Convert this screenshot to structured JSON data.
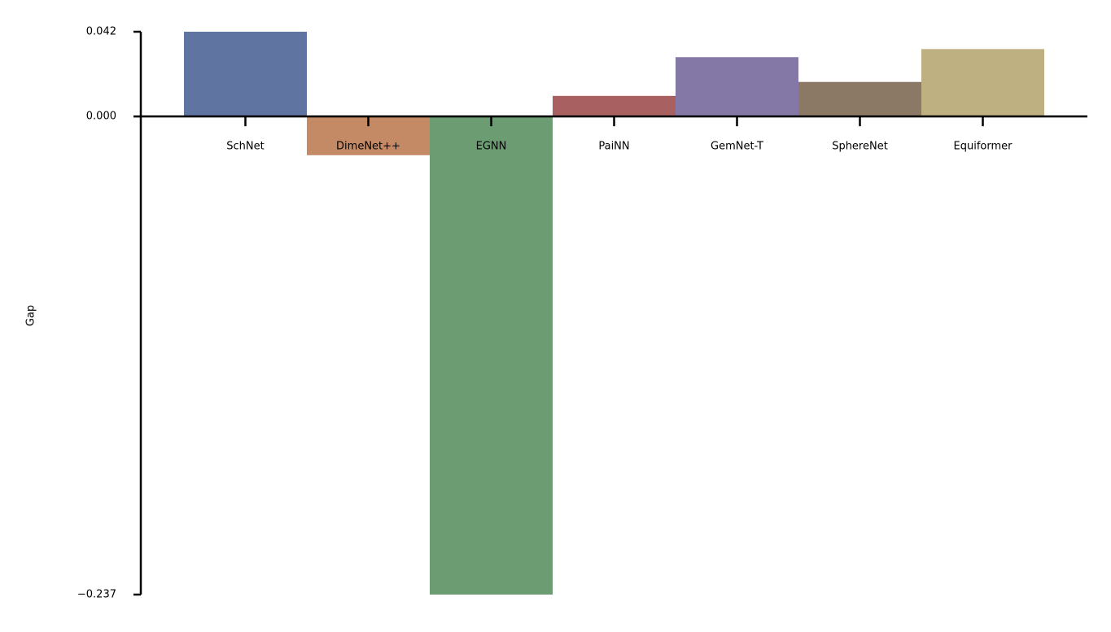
{
  "chart_data": {
    "type": "bar",
    "y_label": "Gap",
    "categories": [
      "SchNet",
      "DimeNet++",
      "EGNN",
      "PaiNN",
      "GemNet-T",
      "SphereNet",
      "Equiformer"
    ],
    "values": [
      0.042,
      -0.0192,
      -0.237,
      0.0102,
      0.0294,
      0.0171,
      0.0334
    ],
    "colors": [
      "#5f74a0",
      "#c48a66",
      "#6b9c72",
      "#a86060",
      "#8479a6",
      "#8b7966",
      "#bfb081"
    ],
    "ylim": [
      -0.237,
      0.042
    ],
    "yticks": [
      0.042,
      {
        "value": 0,
        "label": "0.000"
      },
      {
        "value": -0.237,
        "label": "−0.237"
      }
    ],
    "grid": false
  }
}
